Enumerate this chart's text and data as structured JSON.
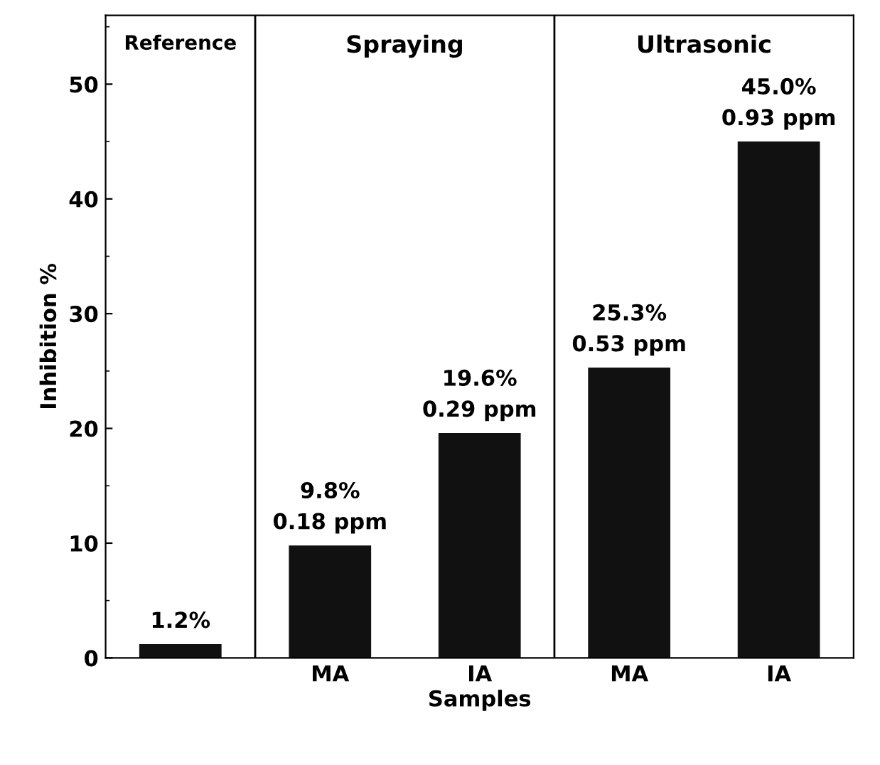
{
  "chart_data": {
    "type": "bar",
    "xlabel": "Samples",
    "ylabel": "Inhibition %",
    "categories": [
      null,
      "MA",
      "IA",
      "MA",
      "IA"
    ],
    "values": [
      1.2,
      9.8,
      19.6,
      25.3,
      45.0
    ],
    "color": "#111111",
    "value_labels": [
      "1.2%",
      "9.8%\n0.18 ppm",
      "19.6%\n0.29 ppm",
      "25.3%\n0.53 ppm",
      "45.0%\n0.93 ppm"
    ],
    "ylim": [
      0,
      56
    ],
    "yticks": [
      0,
      10,
      20,
      30,
      40,
      50
    ],
    "annotations": [
      "Reference",
      "Spraying",
      "Ultrasonic"
    ],
    "grid": false
  }
}
